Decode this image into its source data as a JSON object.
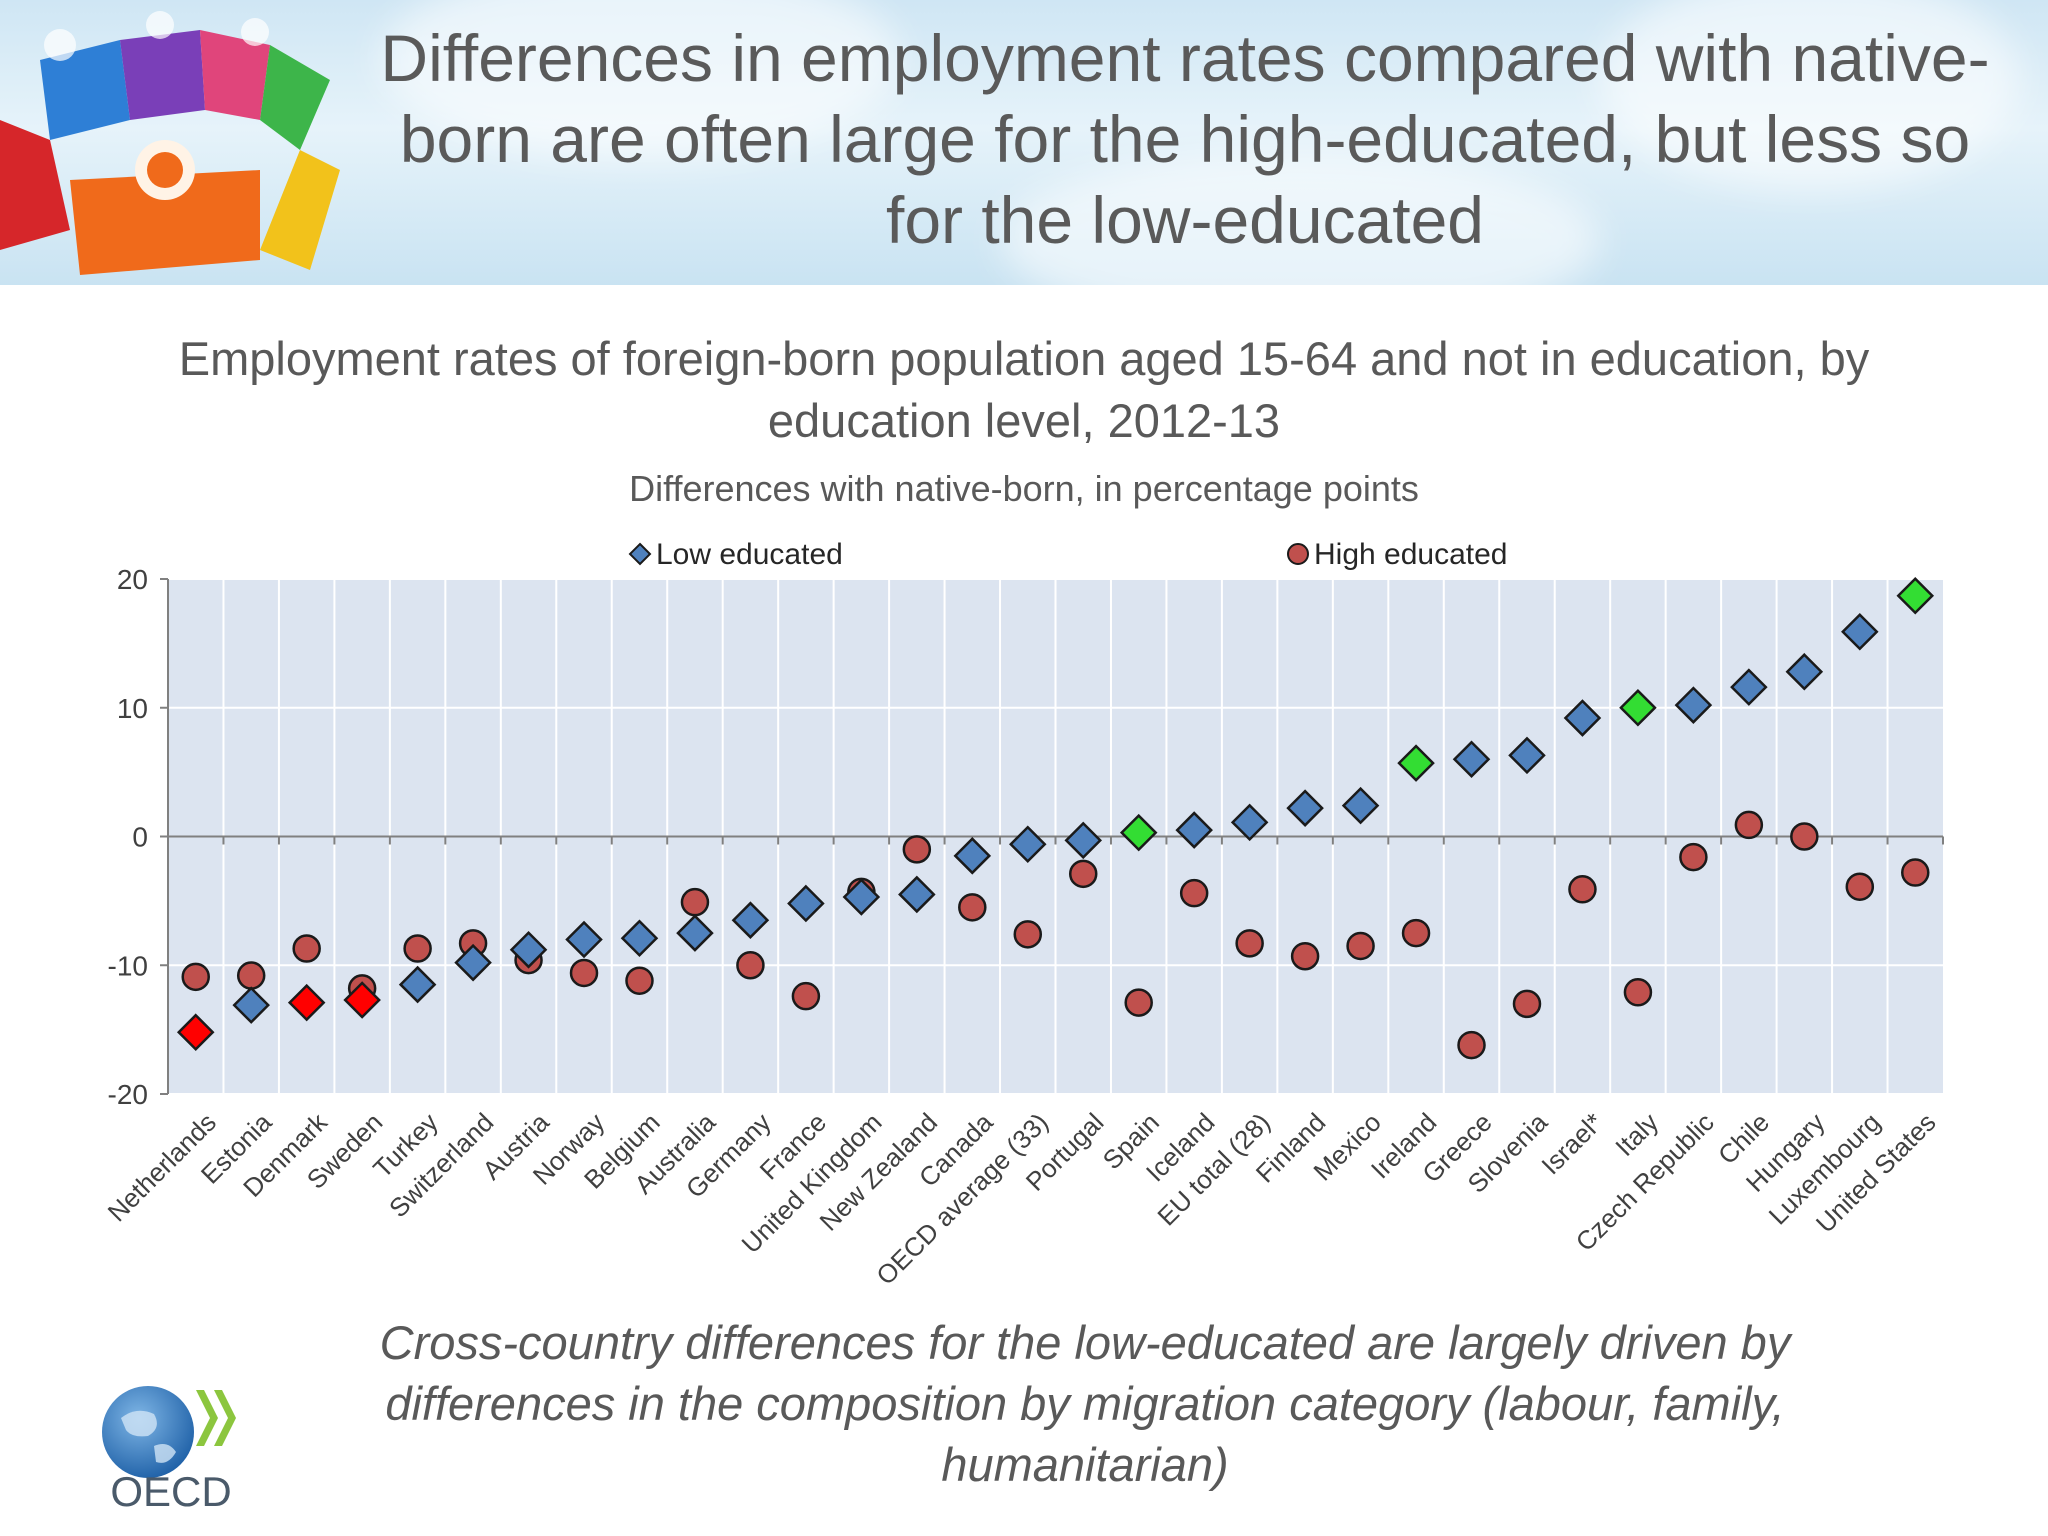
{
  "banner": {
    "title": "Differences in employment rates compared with native-born are often large for the high-educated, but less so for the low-educated"
  },
  "chart_heading": {
    "title": "Employment rates of foreign-born population aged 15-64 and not in education, by education level, 2012-13",
    "subtitle": "Differences with native-born, in percentage points"
  },
  "footnote": "Cross-country differences for the low-educated are largely driven by differences in the composition by migration category (labour, family, humanitarian)",
  "logo": {
    "text": "OECD"
  },
  "chart_data": {
    "type": "scatter",
    "title": "Employment rates of foreign-born population aged 15-64 and not in education, by education level, 2012-13",
    "subtitle": "Differences with native-born, in percentage points",
    "ylim": [
      -20,
      20
    ],
    "yticks": [
      -20,
      -10,
      0,
      10,
      20
    ],
    "grid": true,
    "legend_position": "top",
    "categories": [
      "Netherlands",
      "Estonia",
      "Denmark",
      "Sweden",
      "Turkey",
      "Switzerland",
      "Austria",
      "Norway",
      "Belgium",
      "Australia",
      "Germany",
      "France",
      "United Kingdom",
      "New Zealand",
      "Canada",
      "OECD average (33)",
      "Portugal",
      "Spain",
      "Iceland",
      "EU total (28)",
      "Finland",
      "Mexico",
      "Ireland",
      "Greece",
      "Slovenia",
      "Israel*",
      "Italy",
      "Czech Republic",
      "Chile",
      "Hungary",
      "Luxembourg",
      "United States"
    ],
    "series": [
      {
        "name": "Low educated",
        "marker": "diamond",
        "color": "#4f81bd",
        "values": [
          -15.2,
          -13.1,
          -12.9,
          -12.7,
          -11.5,
          -9.8,
          -8.8,
          -8.0,
          -7.9,
          -7.5,
          -6.5,
          -5.2,
          -4.7,
          -4.5,
          -1.5,
          -0.6,
          -0.3,
          0.3,
          0.5,
          1.1,
          2.2,
          2.4,
          5.7,
          6.0,
          6.3,
          9.2,
          10.0,
          10.2,
          11.6,
          12.8,
          15.9,
          18.7
        ]
      },
      {
        "name": "High educated",
        "marker": "circle",
        "color": "#c0504d",
        "values": [
          -10.9,
          -10.8,
          -8.7,
          -11.8,
          -8.7,
          -8.3,
          -9.6,
          -10.6,
          -11.2,
          -5.1,
          -10.0,
          -12.4,
          -4.3,
          -1.0,
          -5.5,
          -7.6,
          -2.9,
          -12.9,
          -4.4,
          -8.3,
          -9.3,
          -8.5,
          -7.5,
          -16.2,
          -13.0,
          -4.1,
          -12.1,
          -1.6,
          0.9,
          0.0,
          -3.9,
          -2.8
        ]
      }
    ],
    "highlight_colors": {
      "red": "#ff0000",
      "green": "#33dd33"
    },
    "highlighted_low": {
      "Netherlands": "red",
      "Denmark": "red",
      "Sweden": "red",
      "Spain": "green",
      "Ireland": "green",
      "Italy": "green",
      "United States": "green"
    }
  }
}
